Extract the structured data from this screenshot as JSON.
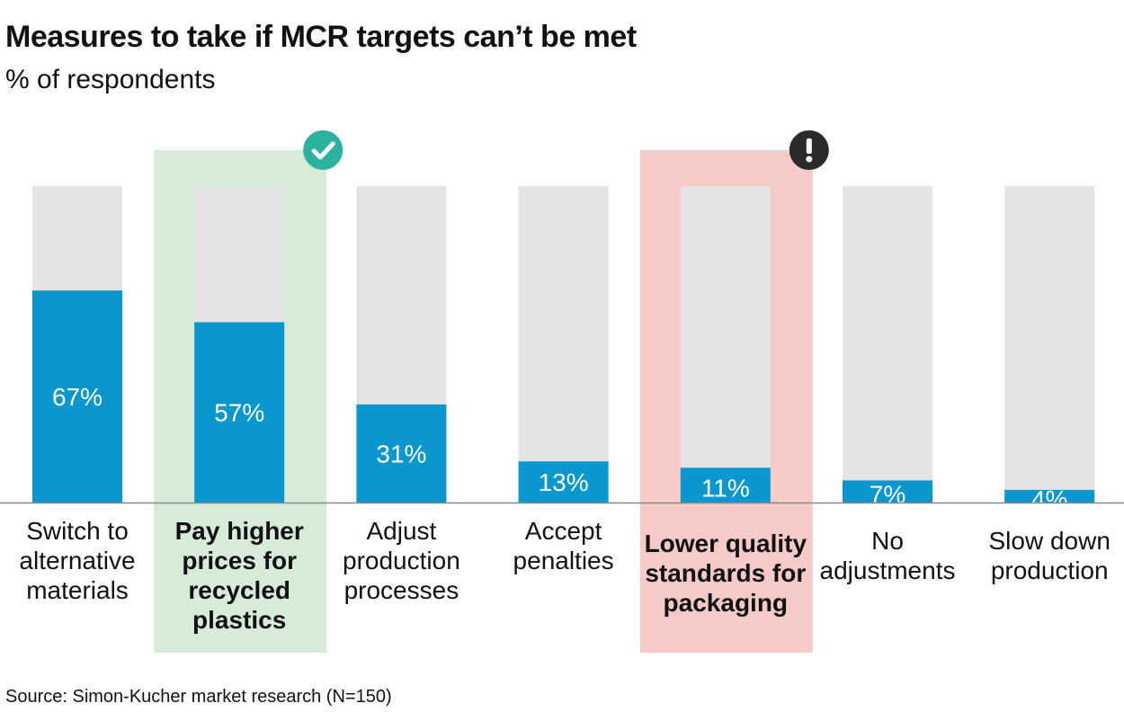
{
  "chart_data": {
    "type": "bar",
    "title": "Measures to take if MCR targets can’t be met",
    "subtitle": "% of respondents",
    "source": "Source: Simon-Kucher market research (N=150)",
    "ylim": [
      0,
      100
    ],
    "unit": "%",
    "categories": [
      {
        "lines": [
          "Switch to",
          "alternative",
          "materials"
        ],
        "value": 67,
        "label": "67%",
        "highlight": "none"
      },
      {
        "lines": [
          "Pay higher",
          "prices for",
          "recycled",
          "plastics"
        ],
        "value": 57,
        "label": "57%",
        "highlight": "positive"
      },
      {
        "lines": [
          "Adjust",
          "production",
          "processes"
        ],
        "value": 31,
        "label": "31%",
        "highlight": "none"
      },
      {
        "lines": [
          "Accept",
          "penalties"
        ],
        "value": 13,
        "label": "13%",
        "highlight": "none"
      },
      {
        "lines": [
          "Lower quality",
          "standards for",
          "packaging"
        ],
        "value": 11,
        "label": "11%",
        "highlight": "warning"
      },
      {
        "lines": [
          "No",
          "adjustments"
        ],
        "value": 7,
        "label": "7%",
        "highlight": "none"
      },
      {
        "lines": [
          "Slow down",
          "production"
        ],
        "value": 4,
        "label": "4%",
        "highlight": "none"
      }
    ],
    "icons": {
      "positive": "check-circle-icon",
      "warning": "exclamation-circle-icon"
    },
    "colors": {
      "bar": "#0a96cf",
      "track": "#e4e3e5",
      "baseline": "#8a8a8a",
      "highlight_positive": "#d7ecd8",
      "highlight_warning": "#f6cac6",
      "icon_positive": "#2bb3a0",
      "icon_warning": "#2b2b2b"
    }
  }
}
